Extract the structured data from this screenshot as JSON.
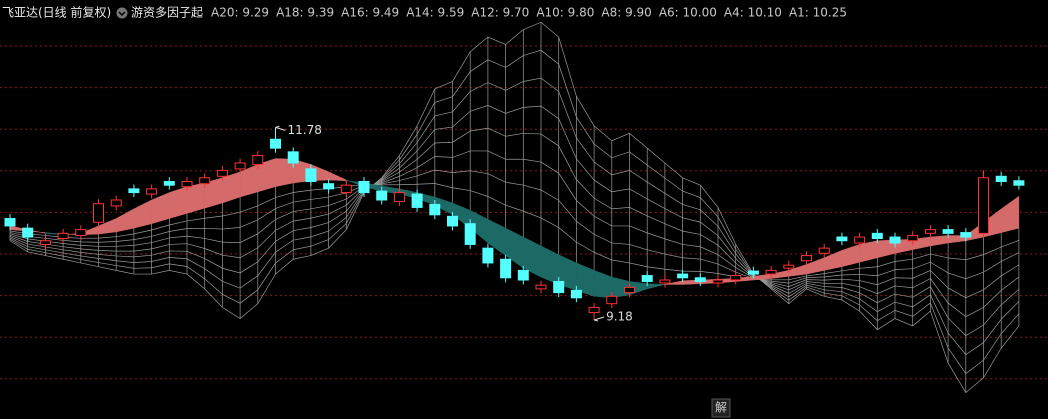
{
  "chart_data": {
    "type": "candlestick",
    "title": "飞亚达(日线 前复权)",
    "indicator": "游资多因子起",
    "indicator_values": [
      "A20: 9.29",
      "A18: 9.39",
      "A16: 9.49",
      "A14: 9.59",
      "A12: 9.70",
      "A10: 9.80",
      "A8: 9.90",
      "A6: 10.00",
      "A4: 10.10",
      "A1: 10.25"
    ],
    "button": "解",
    "ylim": [
      8.1,
      13.5
    ],
    "up_color": "#ff3232",
    "down_color": "#54ffff",
    "ribbon_up_color": "#d46a6a",
    "ribbon_down_color": "#1d6966",
    "mesh_color": "#9a9a9a",
    "open": [
      10.55,
      10.42,
      10.2,
      10.28,
      10.32,
      10.5,
      10.72,
      10.95,
      10.88,
      11.05,
      10.98,
      11.02,
      11.12,
      11.22,
      11.28,
      11.62,
      11.45,
      11.22,
      11.02,
      10.9,
      11.05,
      10.92,
      10.78,
      10.88,
      10.74,
      10.58,
      10.48,
      10.15,
      10.0,
      9.85,
      9.6,
      9.7,
      9.58,
      9.28,
      9.4,
      9.55,
      9.78,
      9.68,
      9.8,
      9.75,
      9.68,
      9.72,
      9.84,
      9.8,
      9.88,
      9.98,
      10.08,
      10.3,
      10.22,
      10.35,
      10.3,
      10.25,
      10.35,
      10.4,
      10.36,
      10.35,
      11.12,
      11.06
    ],
    "high": [
      10.61,
      10.48,
      10.31,
      10.41,
      10.46,
      10.81,
      10.86,
      11.01,
      11.01,
      11.11,
      11.11,
      11.16,
      11.26,
      11.36,
      11.46,
      11.78,
      11.51,
      11.28,
      11.08,
      11.06,
      11.11,
      10.98,
      10.96,
      10.94,
      10.8,
      10.64,
      10.54,
      10.21,
      10.06,
      9.91,
      9.71,
      9.76,
      9.64,
      9.41,
      9.56,
      9.68,
      9.84,
      9.78,
      9.86,
      9.81,
      9.78,
      9.84,
      9.9,
      9.91,
      9.98,
      10.11,
      10.21,
      10.36,
      10.36,
      10.41,
      10.36,
      10.38,
      10.46,
      10.46,
      10.42,
      11.2,
      11.18,
      11.12
    ],
    "low": [
      10.39,
      10.24,
      10.14,
      10.22,
      10.26,
      10.44,
      10.66,
      10.84,
      10.82,
      10.94,
      10.92,
      10.96,
      11.06,
      11.16,
      11.22,
      11.44,
      11.24,
      10.99,
      10.89,
      10.84,
      10.84,
      10.74,
      10.72,
      10.64,
      10.54,
      10.39,
      10.14,
      9.89,
      9.69,
      9.66,
      9.54,
      9.49,
      9.42,
      9.18,
      9.34,
      9.49,
      9.64,
      9.62,
      9.69,
      9.64,
      9.62,
      9.66,
      9.74,
      9.74,
      9.82,
      9.92,
      10.02,
      10.19,
      10.16,
      10.22,
      10.16,
      10.19,
      10.29,
      10.29,
      10.24,
      10.29,
      10.99,
      10.94
    ],
    "close": [
      10.45,
      10.3,
      10.25,
      10.35,
      10.4,
      10.75,
      10.8,
      10.9,
      10.95,
      11.0,
      11.05,
      11.1,
      11.2,
      11.3,
      11.4,
      11.5,
      11.3,
      11.05,
      10.95,
      11.0,
      10.9,
      10.8,
      10.9,
      10.7,
      10.6,
      10.45,
      10.2,
      9.95,
      9.75,
      9.72,
      9.65,
      9.55,
      9.48,
      9.35,
      9.5,
      9.62,
      9.7,
      9.72,
      9.75,
      9.7,
      9.72,
      9.78,
      9.8,
      9.85,
      9.92,
      10.05,
      10.15,
      10.25,
      10.3,
      10.28,
      10.22,
      10.32,
      10.4,
      10.35,
      10.3,
      11.1,
      11.05,
      11.0
    ],
    "fast": [
      10.45,
      10.4,
      10.35,
      10.33,
      10.35,
      10.45,
      10.55,
      10.68,
      10.8,
      10.9,
      10.98,
      11.03,
      11.1,
      11.18,
      11.28,
      11.36,
      11.35,
      11.28,
      11.18,
      11.07,
      10.98,
      10.92,
      10.88,
      10.82,
      10.73,
      10.6,
      10.42,
      10.22,
      10.05,
      9.88,
      9.76,
      9.66,
      9.58,
      9.5,
      9.48,
      9.52,
      9.6,
      9.66,
      9.71,
      9.72,
      9.73,
      9.74,
      9.77,
      9.8,
      9.85,
      9.93,
      10.02,
      10.12,
      10.2,
      10.25,
      10.26,
      10.27,
      10.3,
      10.32,
      10.32,
      10.5,
      10.68,
      10.85
    ],
    "slow": [
      10.4,
      10.38,
      10.36,
      10.34,
      10.33,
      10.34,
      10.37,
      10.42,
      10.48,
      10.55,
      10.62,
      10.69,
      10.76,
      10.84,
      10.91,
      10.98,
      11.03,
      11.06,
      11.07,
      11.06,
      11.03,
      10.99,
      10.95,
      10.9,
      10.84,
      10.76,
      10.66,
      10.54,
      10.42,
      10.3,
      10.18,
      10.06,
      9.95,
      9.85,
      9.76,
      9.7,
      9.67,
      9.66,
      9.66,
      9.67,
      9.68,
      9.7,
      9.72,
      9.74,
      9.77,
      9.8,
      9.85,
      9.9,
      9.96,
      10.02,
      10.08,
      10.13,
      10.18,
      10.22,
      10.25,
      10.3,
      10.36,
      10.42
    ],
    "envelope": [
      10.25,
      10.1,
      10.05,
      10.0,
      9.95,
      9.9,
      9.85,
      9.8,
      9.8,
      9.85,
      9.8,
      9.6,
      9.35,
      9.2,
      9.4,
      9.8,
      10.0,
      10.05,
      10.15,
      10.4,
      10.9,
      11.1,
      11.4,
      11.8,
      12.3,
      12.4,
      12.8,
      13.0,
      12.9,
      13.1,
      13.2,
      13.0,
      12.2,
      11.8,
      11.6,
      11.7,
      11.5,
      11.3,
      11.1,
      11.0,
      10.7,
      10.2,
      9.8,
      9.6,
      9.4,
      9.6,
      9.5,
      9.45,
      9.3,
      9.05,
      9.2,
      9.1,
      9.3,
      8.6,
      8.2,
      8.4,
      8.8,
      9.1
    ]
  }
}
